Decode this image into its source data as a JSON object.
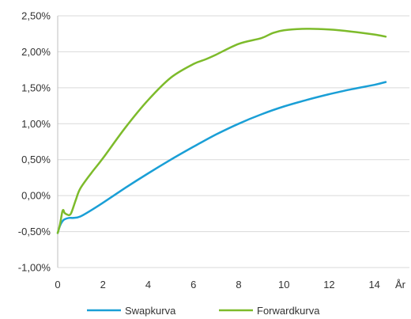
{
  "chart_data": {
    "type": "line",
    "title": "",
    "xlabel": "",
    "ylabel": "",
    "x_unit_label": "År",
    "xlim": [
      0,
      14.5
    ],
    "ylim": [
      -1.0,
      2.5
    ],
    "x_ticks": [
      0,
      2,
      4,
      6,
      8,
      10,
      12,
      14
    ],
    "x_tick_labels": [
      "0",
      "2",
      "4",
      "6",
      "8",
      "10",
      "12",
      "14"
    ],
    "y_ticks": [
      -1.0,
      -0.5,
      0.0,
      0.5,
      1.0,
      1.5,
      2.0,
      2.5
    ],
    "y_tick_labels": [
      "-1,00%",
      "-0,50%",
      "0,00%",
      "0,50%",
      "1,00%",
      "1,50%",
      "2,00%",
      "2,50%"
    ],
    "grid": "horizontal",
    "legend_position": "bottom",
    "series": [
      {
        "name": "Swapkurva",
        "color": "#1a9fd6",
        "x": [
          0,
          0.1,
          0.2,
          0.3,
          0.5,
          0.7,
          1,
          1.5,
          2,
          3,
          4,
          5,
          6,
          7,
          8,
          9,
          10,
          11,
          12,
          13,
          14,
          14.5
        ],
        "y": [
          -0.52,
          -0.42,
          -0.36,
          -0.33,
          -0.31,
          -0.31,
          -0.29,
          -0.2,
          -0.1,
          0.11,
          0.31,
          0.5,
          0.68,
          0.85,
          1.0,
          1.13,
          1.24,
          1.33,
          1.41,
          1.48,
          1.54,
          1.58
        ]
      },
      {
        "name": "Forwardkurva",
        "color": "#7dbb2b",
        "x": [
          0,
          0.1,
          0.2,
          0.25,
          0.3,
          0.4,
          0.5,
          0.6,
          0.8,
          1,
          1.5,
          2,
          3,
          4,
          5,
          6,
          6.5,
          7,
          8,
          9,
          9.5,
          10,
          11,
          12,
          13,
          14,
          14.5
        ],
        "y": [
          -0.52,
          -0.4,
          -0.23,
          -0.2,
          -0.24,
          -0.26,
          -0.27,
          -0.24,
          -0.06,
          0.1,
          0.32,
          0.52,
          0.95,
          1.33,
          1.64,
          1.83,
          1.89,
          1.96,
          2.11,
          2.19,
          2.26,
          2.3,
          2.32,
          2.31,
          2.28,
          2.24,
          2.21
        ]
      }
    ]
  }
}
